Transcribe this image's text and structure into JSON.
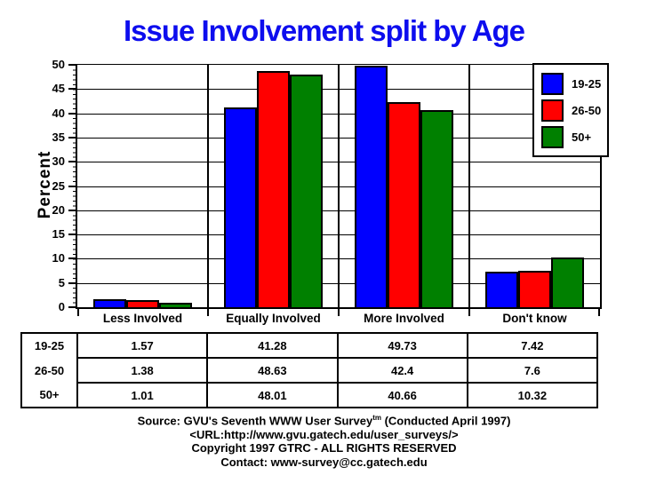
{
  "chart_data": {
    "type": "bar",
    "title": "Issue Involvement split by Age",
    "xlabel": "",
    "ylabel": "Percent",
    "ylim": [
      0,
      50
    ],
    "yticks": [
      0,
      5,
      10,
      15,
      20,
      25,
      30,
      35,
      40,
      45,
      50
    ],
    "grid": true,
    "legend_position": "top-right",
    "categories": [
      "Less Involved",
      "Equally Involved",
      "More Involved",
      "Don't know"
    ],
    "series": [
      {
        "name": "19-25",
        "color": "#0000ff",
        "values": [
          1.57,
          41.28,
          49.73,
          7.42
        ]
      },
      {
        "name": "26-50",
        "color": "#ff0000",
        "values": [
          1.38,
          48.63,
          42.4,
          7.6
        ]
      },
      {
        "name": "50+",
        "color": "#008000",
        "values": [
          1.01,
          48.01,
          40.66,
          10.32
        ]
      }
    ]
  },
  "table": {
    "rows": [
      {
        "label": "19-25",
        "values": [
          "1.57",
          "41.28",
          "49.73",
          "7.42"
        ]
      },
      {
        "label": "26-50",
        "values": [
          "1.38",
          "48.63",
          "42.4",
          "7.6"
        ]
      },
      {
        "label": "50+",
        "values": [
          "1.01",
          "48.01",
          "40.66",
          "10.32"
        ]
      }
    ]
  },
  "footer": {
    "line1_pre": "Source: GVU's Seventh WWW User Survey",
    "line1_sup": "tm",
    "line1_post": " (Conducted April 1997)",
    "line2": "<URL:http://www.gvu.gatech.edu/user_surveys/>",
    "line3": "Copyright 1997 GTRC - ALL RIGHTS RESERVED",
    "line4": "Contact: www-survey@cc.gatech.edu"
  },
  "colors": {
    "title": "#0d0dee",
    "axis": "#000000",
    "background": "#ffffff"
  }
}
